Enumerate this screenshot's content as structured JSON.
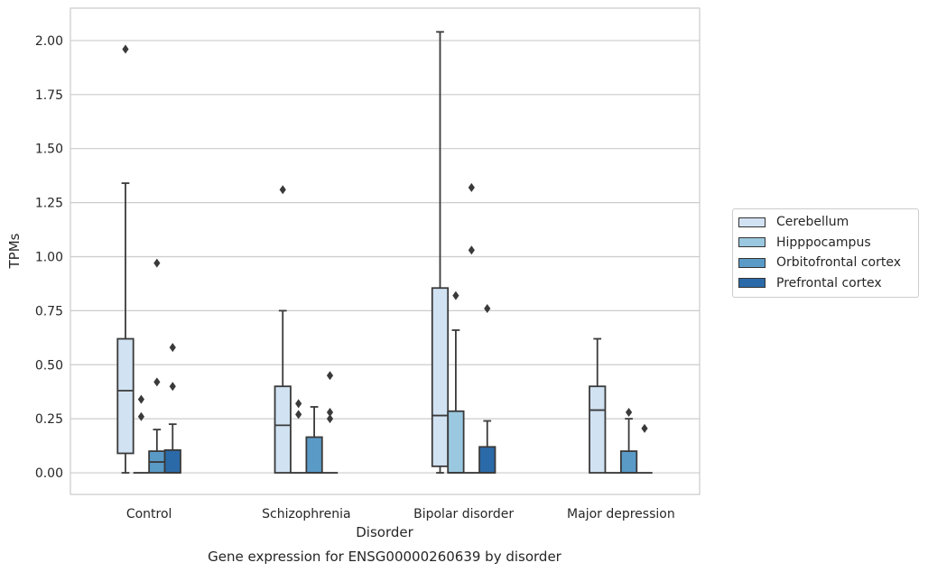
{
  "chart_data": {
    "type": "box",
    "title": "Gene expression for ENSG00000260639 by disorder",
    "xlabel": "Disorder",
    "ylabel": "TPMs",
    "ylim": [
      -0.1,
      2.15
    ],
    "yticks": [
      "0.00",
      "0.25",
      "0.50",
      "0.75",
      "1.00",
      "1.25",
      "1.50",
      "1.75",
      "2.00"
    ],
    "categories": [
      "Control",
      "Schizophrenia",
      "Bipolar disorder",
      "Major depression"
    ],
    "grid": "horizontal",
    "legend_position": "right",
    "series": [
      {
        "name": "Cerebellum",
        "color": "#d1e2f2",
        "boxes": [
          {
            "category": "Control",
            "whislo": 0.0,
            "q1": 0.09,
            "median": 0.38,
            "q3": 0.62,
            "whishi": 1.34,
            "fliers": [
              1.96
            ]
          },
          {
            "category": "Schizophrenia",
            "whislo": 0.0,
            "q1": 0.0,
            "median": 0.22,
            "q3": 0.4,
            "whishi": 0.75,
            "fliers": [
              1.31
            ]
          },
          {
            "category": "Bipolar disorder",
            "whislo": 0.0,
            "q1": 0.03,
            "median": 0.265,
            "q3": 0.855,
            "whishi": 2.04,
            "fliers": []
          },
          {
            "category": "Major depression",
            "whislo": 0.0,
            "q1": 0.0,
            "median": 0.29,
            "q3": 0.4,
            "whishi": 0.62,
            "fliers": []
          }
        ]
      },
      {
        "name": "Hipppocampus",
        "color": "#9ac8e0",
        "boxes": [
          {
            "category": "Control",
            "whislo": 0.0,
            "q1": 0.0,
            "median": 0.0,
            "q3": 0.0,
            "whishi": 0.0,
            "fliers": [
              0.26,
              0.34
            ]
          },
          {
            "category": "Schizophrenia",
            "whislo": 0.0,
            "q1": 0.0,
            "median": 0.0,
            "q3": 0.0,
            "whishi": 0.0,
            "fliers": [
              0.27,
              0.32
            ]
          },
          {
            "category": "Bipolar disorder",
            "whislo": 0.0,
            "q1": 0.0,
            "median": 0.0,
            "q3": 0.285,
            "whishi": 0.66,
            "fliers": [
              0.82
            ]
          },
          {
            "category": "Major depression",
            "whislo": 0.0,
            "q1": 0.0,
            "median": 0.0,
            "q3": 0.0,
            "whishi": 0.0,
            "fliers": []
          }
        ]
      },
      {
        "name": "Orbitofrontal cortex",
        "color": "#5a9ac7",
        "boxes": [
          {
            "category": "Control",
            "whislo": 0.0,
            "q1": 0.0,
            "median": 0.05,
            "q3": 0.1,
            "whishi": 0.2,
            "fliers": [
              0.42,
              0.97
            ]
          },
          {
            "category": "Schizophrenia",
            "whislo": 0.0,
            "q1": 0.0,
            "median": 0.0,
            "q3": 0.165,
            "whishi": 0.305,
            "fliers": []
          },
          {
            "category": "Bipolar disorder",
            "whislo": 0.0,
            "q1": 0.0,
            "median": 0.0,
            "q3": 0.0,
            "whishi": 0.0,
            "fliers": [
              1.03,
              1.32
            ]
          },
          {
            "category": "Major depression",
            "whislo": 0.0,
            "q1": 0.0,
            "median": 0.0,
            "q3": 0.1,
            "whishi": 0.25,
            "fliers": [
              0.28
            ]
          }
        ]
      },
      {
        "name": "Prefrontal cortex",
        "color": "#2b6aa8",
        "boxes": [
          {
            "category": "Control",
            "whislo": 0.0,
            "q1": 0.0,
            "median": 0.0,
            "q3": 0.105,
            "whishi": 0.225,
            "fliers": [
              0.4,
              0.58
            ]
          },
          {
            "category": "Schizophrenia",
            "whislo": 0.0,
            "q1": 0.0,
            "median": 0.0,
            "q3": 0.0,
            "whishi": 0.0,
            "fliers": [
              0.25,
              0.28,
              0.45
            ]
          },
          {
            "category": "Bipolar disorder",
            "whislo": 0.0,
            "q1": 0.0,
            "median": 0.0,
            "q3": 0.12,
            "whishi": 0.24,
            "fliers": [
              0.76
            ]
          },
          {
            "category": "Major depression",
            "whislo": 0.0,
            "q1": 0.0,
            "median": 0.0,
            "q3": 0.0,
            "whishi": 0.0,
            "fliers": [
              0.205
            ]
          }
        ]
      }
    ]
  }
}
